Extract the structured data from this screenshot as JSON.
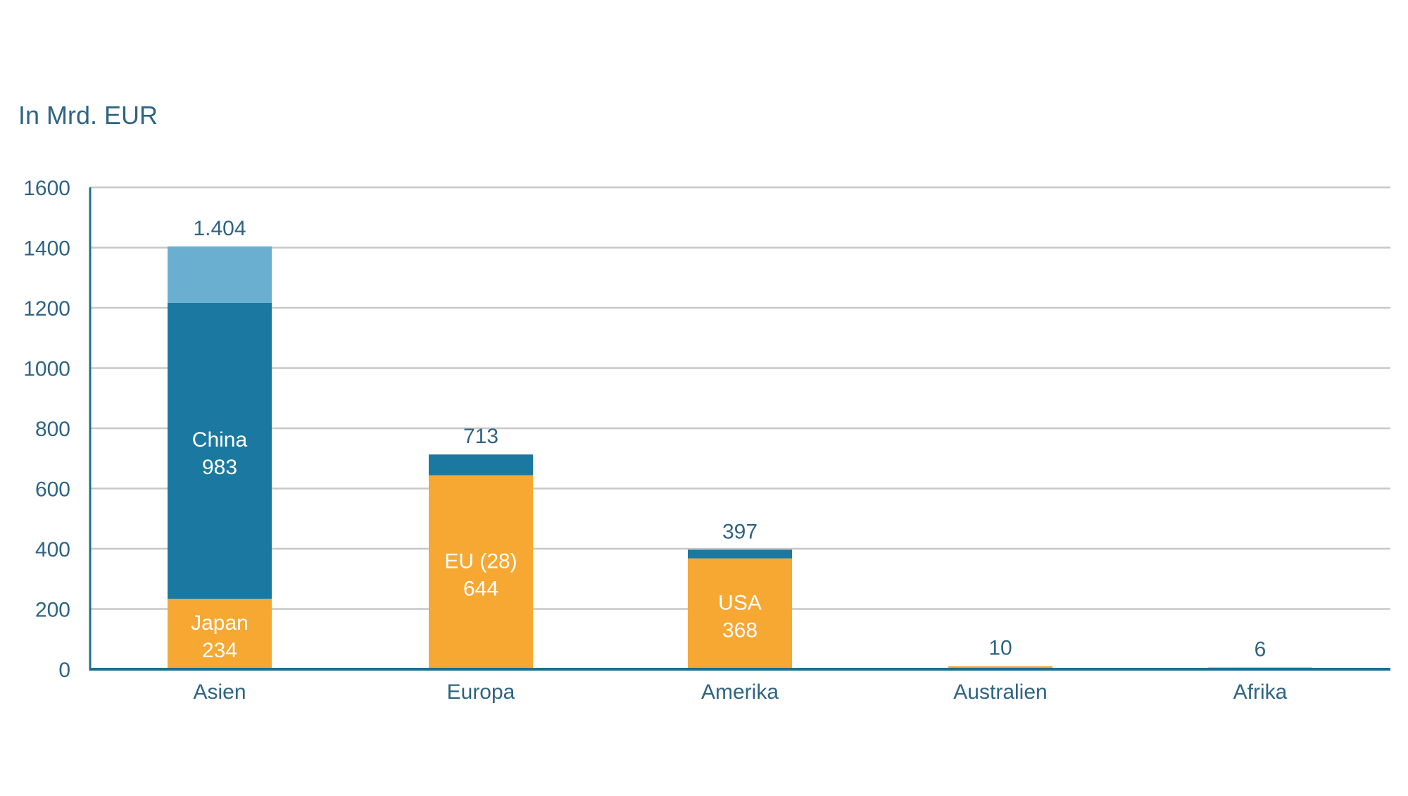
{
  "chart_data": {
    "type": "bar",
    "stacked": true,
    "unit_label": "In Mrd. EUR",
    "categories": [
      "Asien",
      "Europa",
      "Amerika",
      "Australien",
      "Afrika"
    ],
    "ylim": [
      0,
      1600
    ],
    "yticks": [
      "0",
      "200",
      "400",
      "600",
      "800",
      "1000",
      "1200",
      "1400",
      "1600"
    ],
    "grid": true,
    "stacks": [
      {
        "category": "Asien",
        "total": 1404,
        "total_label": "1.404",
        "segments": [
          {
            "value": 234,
            "color": "#f6a833",
            "label": "Japan",
            "value_label": "234"
          },
          {
            "value": 983,
            "color": "#1a78a1",
            "label": "China",
            "value_label": "983"
          },
          {
            "value": 187,
            "color": "#6aaed0"
          }
        ]
      },
      {
        "category": "Europa",
        "total": 713,
        "total_label": "713",
        "segments": [
          {
            "value": 644,
            "color": "#f6a833",
            "label": "EU (28)",
            "value_label": "644"
          },
          {
            "value": 69,
            "color": "#1a78a1"
          }
        ]
      },
      {
        "category": "Amerika",
        "total": 397,
        "total_label": "397",
        "segments": [
          {
            "value": 368,
            "color": "#f6a833",
            "label": "USA",
            "value_label": "368"
          },
          {
            "value": 29,
            "color": "#1a78a1"
          }
        ]
      },
      {
        "category": "Australien",
        "total": 10,
        "total_label": "10",
        "segments": [
          {
            "value": 10,
            "color": "#f6a833"
          }
        ]
      },
      {
        "category": "Afrika",
        "total": 6,
        "total_label": "6",
        "segments": [
          {
            "value": 6,
            "color": "#f6a833"
          }
        ]
      }
    ],
    "colors": {
      "axis": "#1a6f8f",
      "grid": "#c8c8c8",
      "text": "#2f6483",
      "segment_label": "#ffffff"
    }
  }
}
